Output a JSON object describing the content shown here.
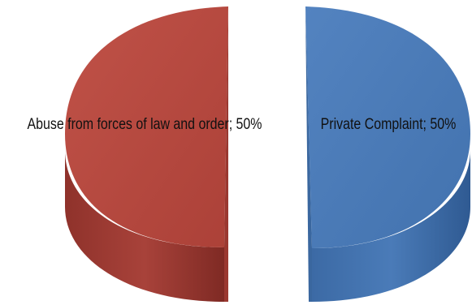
{
  "chart_data": {
    "type": "pie",
    "style": "3d-exploded",
    "title": "",
    "slices": [
      {
        "label": "Abuse from forces of law and order",
        "value": 50,
        "display": "Abuse from forces of law and order; 50%",
        "color": "#b5483f"
      },
      {
        "label": "Private Complaint",
        "value": 50,
        "display": "Private Complaint; 50%",
        "color": "#4a78b3"
      }
    ],
    "legend": "none"
  }
}
